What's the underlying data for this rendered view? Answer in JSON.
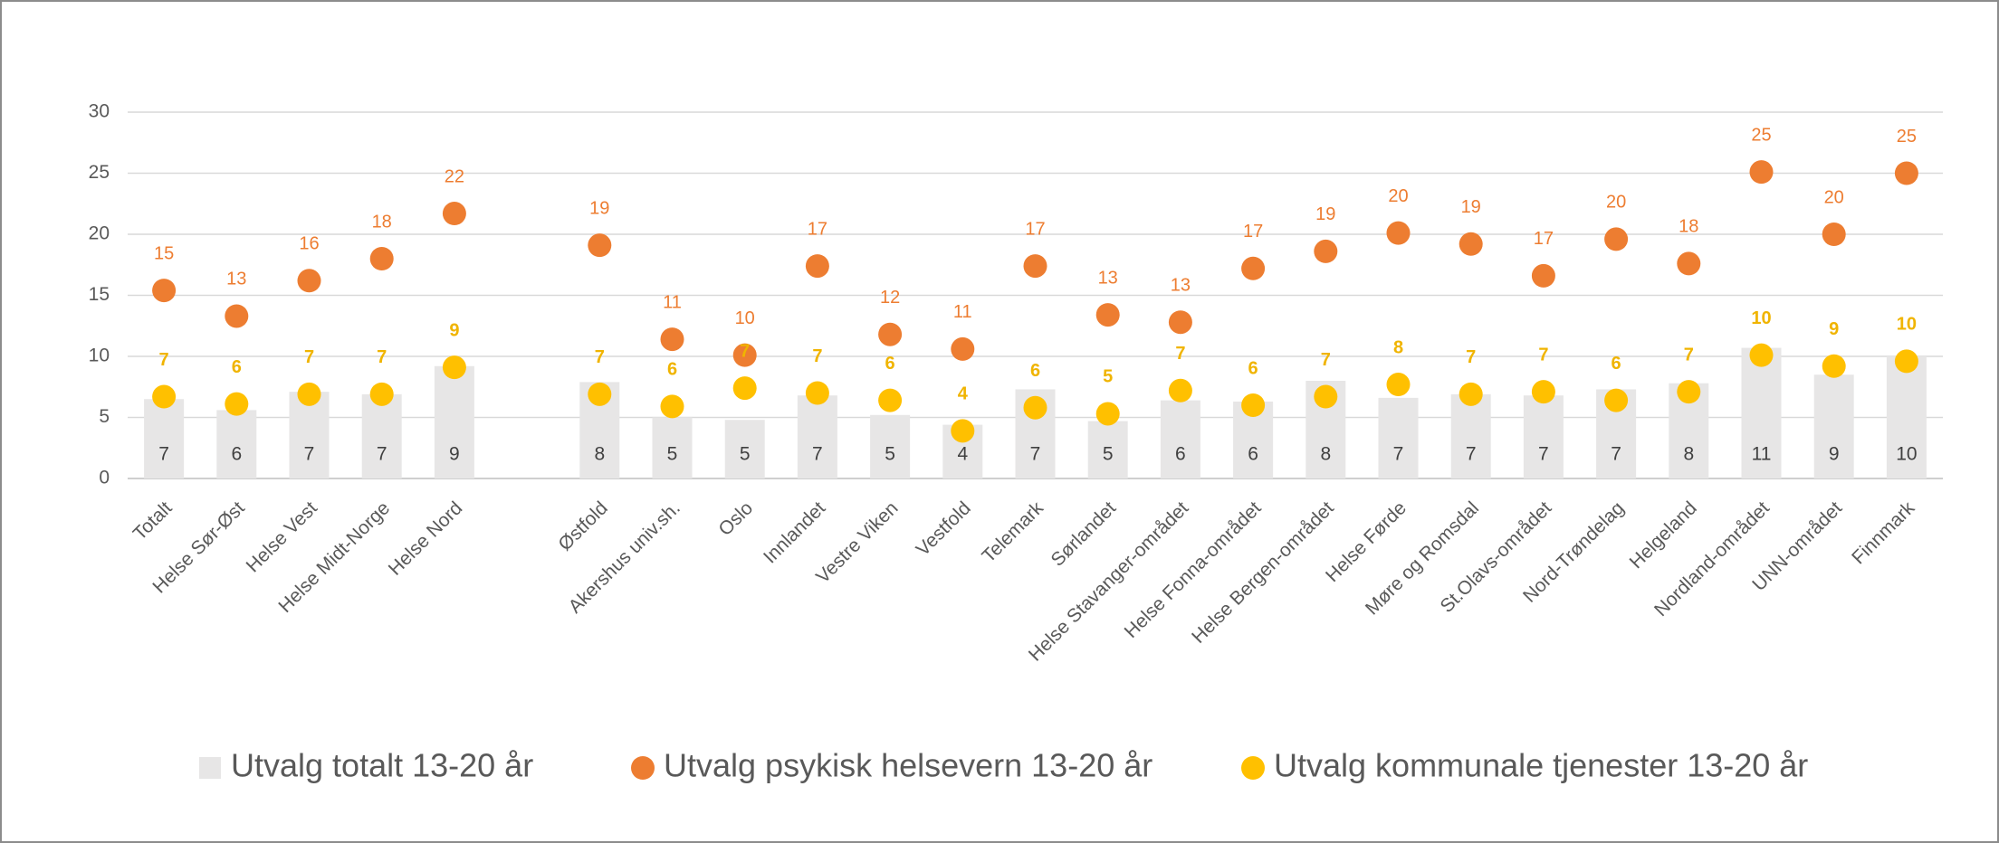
{
  "chart_data": {
    "type": "bar_dot",
    "categories": [
      "Totalt",
      "Helse Sør-Øst",
      "Helse Vest",
      "Helse Midt-Norge",
      "Helse Nord",
      null,
      "Østfold",
      "Akershus univ.sh.",
      "Oslo",
      "Innlandet",
      "Vestre Viken",
      "Vestfold",
      "Telemark",
      "Sørlandet",
      "Helse Stavanger-området",
      "Helse Fonna-området",
      "Helse Bergen-området",
      "Helse Førde",
      "Møre og Romsdal",
      "St.Olavs-området",
      "Nord-Trøndelag",
      "Helgeland",
      "Nordland-området",
      "UNN-området",
      "Finnmark"
    ],
    "series": [
      {
        "name": "Utvalg totalt 13-20 år",
        "kind": "bar",
        "color": "#e7e6e6",
        "label_color": "#404040",
        "values": [
          6.5,
          5.6,
          7.1,
          6.9,
          9.2,
          null,
          7.9,
          5.0,
          4.8,
          6.8,
          5.2,
          4.4,
          7.3,
          4.7,
          6.4,
          6.3,
          8.0,
          6.6,
          6.9,
          6.8,
          7.3,
          7.8,
          10.7,
          8.5,
          10.0
        ],
        "value_labels": [
          "7",
          "6",
          "7",
          "7",
          "9",
          null,
          "8",
          "5",
          "5",
          "7",
          "5",
          "4",
          "7",
          "5",
          "6",
          "6",
          "8",
          "7",
          "7",
          "7",
          "7",
          "8",
          "11",
          "9",
          "10"
        ]
      },
      {
        "name": "Utvalg psykisk helsevern 13-20 år",
        "kind": "dot",
        "color": "#ed7d31",
        "label_color": "#ed7d31",
        "values": [
          15.4,
          13.3,
          16.2,
          18.0,
          21.7,
          null,
          19.1,
          11.4,
          10.1,
          17.4,
          11.8,
          10.6,
          17.4,
          13.4,
          12.8,
          17.2,
          18.6,
          20.1,
          19.2,
          16.6,
          19.6,
          17.6,
          25.1,
          20.0,
          25.0
        ],
        "value_labels": [
          "15",
          "13",
          "16",
          "18",
          "22",
          null,
          "19",
          "11",
          "10",
          "17",
          "12",
          "11",
          "17",
          "13",
          "13",
          "17",
          "19",
          "20",
          "19",
          "17",
          "20",
          "18",
          "25",
          "20",
          "25"
        ]
      },
      {
        "name": "Utvalg kommunale tjenester 13-20 år",
        "kind": "dot",
        "color": "#ffc000",
        "label_color": "#f0b400",
        "values": [
          6.7,
          6.1,
          6.9,
          6.9,
          9.1,
          null,
          6.9,
          5.9,
          7.4,
          7.0,
          6.4,
          3.9,
          5.8,
          5.3,
          7.2,
          6.0,
          6.7,
          7.7,
          6.9,
          7.1,
          6.4,
          7.1,
          10.1,
          9.2,
          9.6
        ],
        "value_labels": [
          "7",
          "6",
          "7",
          "7",
          "9",
          null,
          "7",
          "6",
          "7",
          "7",
          "6",
          "4",
          "6",
          "5",
          "7",
          "6",
          "7",
          "8",
          "7",
          "7",
          "6",
          "7",
          "10",
          "9",
          "10"
        ]
      }
    ],
    "ylim": [
      0,
      30
    ],
    "yticks": [
      0,
      5,
      10,
      15,
      20,
      25,
      30
    ],
    "grid": true,
    "legend": "bottom"
  }
}
